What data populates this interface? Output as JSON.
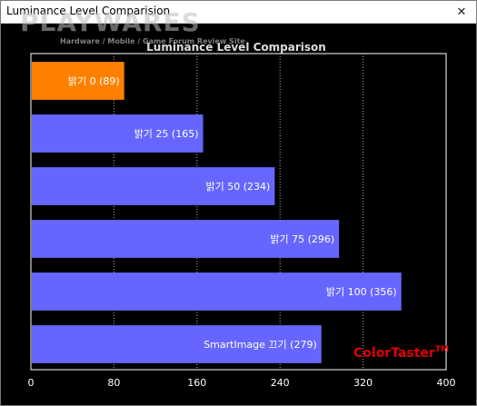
{
  "window": {
    "title": "Luminance Level Comparision",
    "close_glyph": "✕"
  },
  "watermark": {
    "logo": "PLAYWARES",
    "tagline": "Hardware / Mobile / Game Forum Review Site"
  },
  "brand": {
    "text": "ColorTaster",
    "mark": "TM",
    "color": "#e00000"
  },
  "colors": {
    "bar": "#6666ff",
    "bar_highlight": "#ff8000",
    "plot_background": "#000000",
    "grid": "#aaaaaa",
    "tick_text": "#ffffff"
  },
  "chart_data": {
    "type": "bar",
    "orientation": "horizontal",
    "title": "Luminance Level Comparison",
    "categories": [
      "밝기 0",
      "밝기 25",
      "밝기 50",
      "밝기 75",
      "밝기 100",
      "SmartImage 끄기"
    ],
    "values": [
      89,
      165,
      234,
      296,
      356,
      279
    ],
    "bar_labels": [
      "밝기 0 (89)",
      "밝기 25 (165)",
      "밝기 50 (234)",
      "밝기 75 (296)",
      "밝기 100 (356)",
      "SmartImage 끄기 (279)"
    ],
    "highlight_index": 0,
    "xlim": [
      0,
      400
    ],
    "xticks": [
      0,
      80,
      160,
      240,
      320,
      400
    ],
    "grid": "vertical-dotted"
  }
}
